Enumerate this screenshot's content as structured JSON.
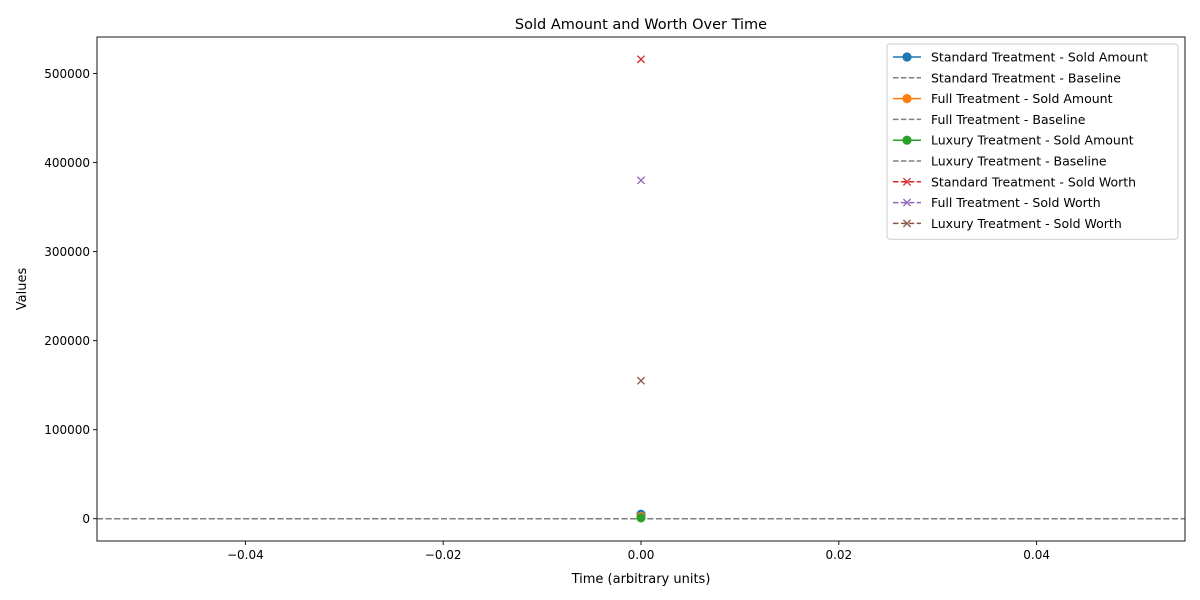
{
  "chart_data": {
    "type": "line",
    "title": "Sold Amount and Worth Over Time",
    "xlabel": "Time (arbitrary units)",
    "ylabel": "Values",
    "xlim": [
      -0.055,
      0.055
    ],
    "ylim": [
      -25000,
      541000
    ],
    "xticks": [
      -0.04,
      -0.02,
      0.0,
      0.02,
      0.04
    ],
    "xtick_labels": [
      "−0.04",
      "−0.02",
      "0.00",
      "0.02",
      "0.04"
    ],
    "yticks": [
      0,
      100000,
      200000,
      300000,
      400000,
      500000
    ],
    "ytick_labels": [
      "0",
      "100000",
      "200000",
      "300000",
      "400000",
      "500000"
    ],
    "grid": false,
    "legend_position": "top-right",
    "series": [
      {
        "name": "Standard Treatment - Sold Amount",
        "kind": "line-marker-o",
        "color": "#1f77b4",
        "x": [
          0
        ],
        "y": [
          5000
        ]
      },
      {
        "name": "Standard Treatment - Baseline",
        "kind": "hline-dashed",
        "color": "#7f7f7f",
        "y": 0
      },
      {
        "name": "Full Treatment - Sold Amount",
        "kind": "line-marker-o",
        "color": "#ff7f0e",
        "x": [
          0
        ],
        "y": [
          2500
        ]
      },
      {
        "name": "Full Treatment - Baseline",
        "kind": "hline-dashed",
        "color": "#7f7f7f",
        "y": 0
      },
      {
        "name": "Luxury Treatment - Sold Amount",
        "kind": "line-marker-o",
        "color": "#2ca02c",
        "x": [
          0
        ],
        "y": [
          1000
        ]
      },
      {
        "name": "Luxury Treatment - Baseline",
        "kind": "hline-dashed",
        "color": "#7f7f7f",
        "y": 0
      },
      {
        "name": "Standard Treatment - Sold Worth",
        "kind": "dashed-marker-x",
        "color": "#d62728",
        "x": [
          0
        ],
        "y": [
          516000
        ]
      },
      {
        "name": "Full Treatment - Sold Worth",
        "kind": "dashed-marker-x",
        "color": "#9467bd",
        "x": [
          0
        ],
        "y": [
          380000
        ]
      },
      {
        "name": "Luxury Treatment - Sold Worth",
        "kind": "dashed-marker-x",
        "color": "#8c564b",
        "x": [
          0
        ],
        "y": [
          155000
        ]
      }
    ]
  }
}
